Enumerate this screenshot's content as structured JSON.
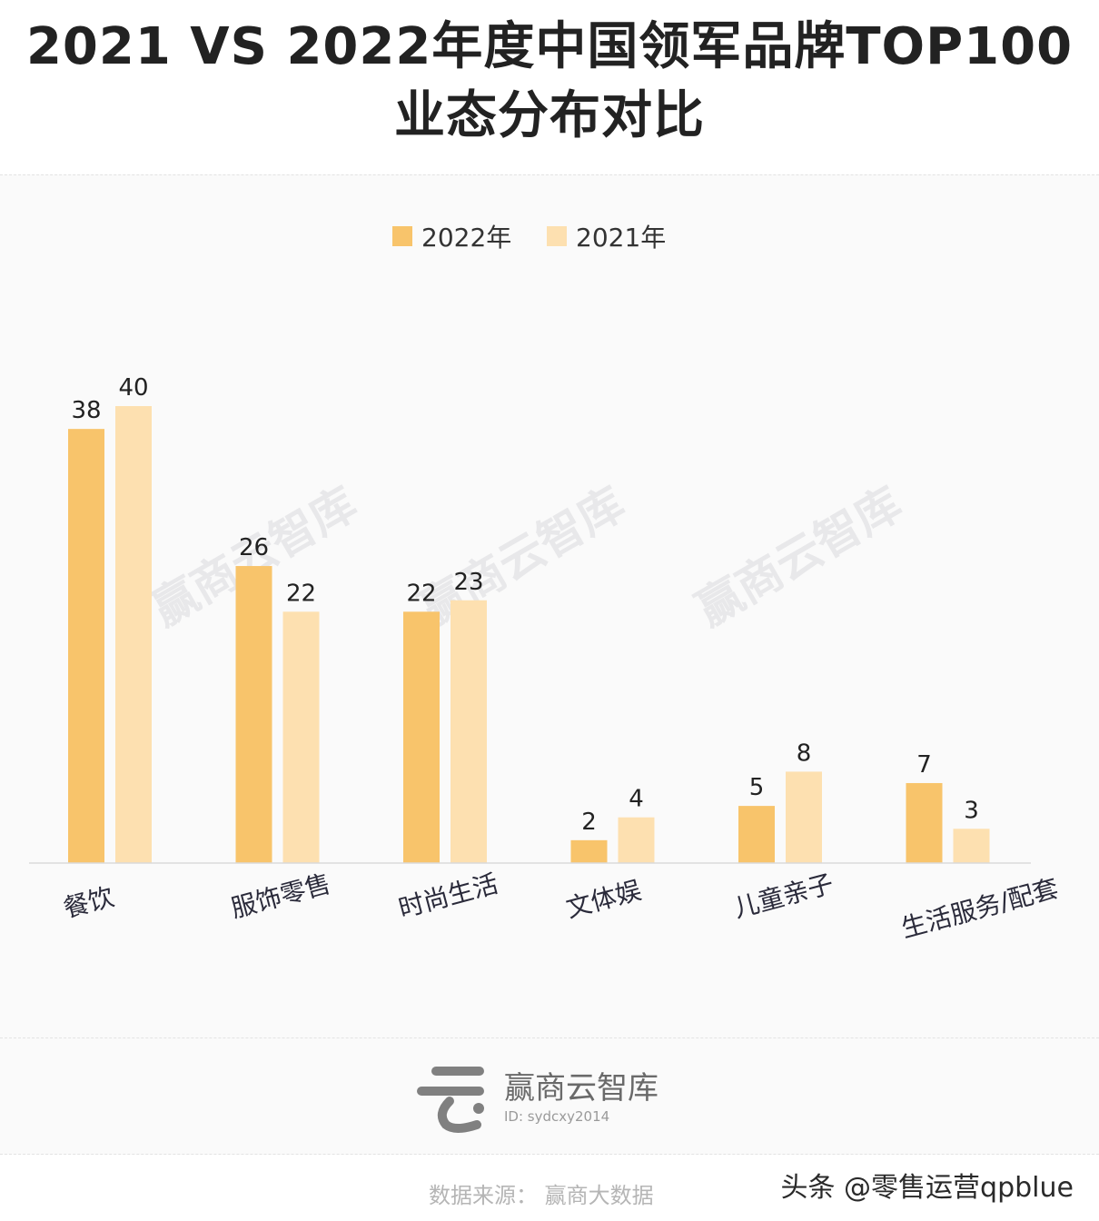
{
  "header": {
    "title_line1": "2021 VS 2022年度中国领军品牌TOP100",
    "title_line2": "业态分布对比"
  },
  "colors": {
    "series_2022": "#f8c46b",
    "series_2021": "#fde0b0",
    "axis": "#d9d9d9"
  },
  "chart_data": {
    "type": "bar",
    "categories": [
      "餐饮",
      "服饰零售",
      "时尚生活",
      "文体娱",
      "儿童亲子",
      "生活服务/配套"
    ],
    "series": [
      {
        "name": "2022年",
        "values": [
          38,
          26,
          22,
          2,
          5,
          7
        ]
      },
      {
        "name": "2021年",
        "values": [
          40,
          22,
          23,
          4,
          8,
          3
        ]
      }
    ],
    "ylim": [
      0,
      40
    ],
    "legend_position": "top-center",
    "grid": false,
    "title": "",
    "xlabel": "",
    "ylabel": ""
  },
  "watermark": "赢商云智库",
  "footer": {
    "logo_name": "赢商云智库",
    "logo_id": "ID: sydcxy2014",
    "source": "数据来源： 赢商大数据",
    "credit": "头条 @零售运营qpblue"
  }
}
